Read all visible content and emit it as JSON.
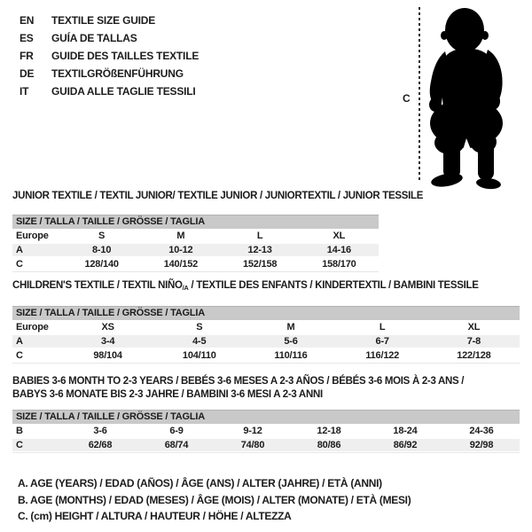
{
  "languages": [
    {
      "code": "EN",
      "title": "TEXTILE SIZE GUIDE"
    },
    {
      "code": "ES",
      "title": "GUÍA DE TALLAS"
    },
    {
      "code": "FR",
      "title": "GUIDE DES TAILLES TEXTILE"
    },
    {
      "code": "DE",
      "title": "TEXTILGRÖßENFÜHRUNG"
    },
    {
      "code": "IT",
      "title": "GUIDA ALLE TAGLIE TESSILI"
    }
  ],
  "figure": {
    "height_label": "C"
  },
  "sections": [
    {
      "title": "JUNIOR TEXTILE / TEXTIL JUNIOR/ TEXTILE JUNIOR / JUNIORTEXTIL / JUNIOR TESSILE",
      "table": {
        "size_header": "SIZE / TALLA / TAILLE / GRÖSSE / TAGLIA",
        "rows": [
          {
            "label": "Europe",
            "values": [
              "S",
              "M",
              "L",
              "XL"
            ]
          },
          {
            "label": "A",
            "values": [
              "8-10",
              "10-12",
              "12-13",
              "14-16"
            ]
          },
          {
            "label": "C",
            "values": [
              "128/140",
              "140/152",
              "152/158",
              "158/170"
            ]
          }
        ]
      }
    },
    {
      "title_pre": "CHILDREN'S TEXTILE / TEXTIL NIÑO",
      "title_sub": "/A",
      "title_post": " / TEXTILE DES ENFANTS / KINDERTEXTIL / BAMBINI TESSILE",
      "table": {
        "size_header": "SIZE / TALLA / TAILLE / GRÖSSE / TAGLIA",
        "rows": [
          {
            "label": "Europe",
            "values": [
              "XS",
              "S",
              "M",
              "L",
              "XL"
            ]
          },
          {
            "label": "A",
            "values": [
              "3-4",
              "4-5",
              "5-6",
              "6-7",
              "7-8"
            ]
          },
          {
            "label": "C",
            "values": [
              "98/104",
              "104/110",
              "110/116",
              "116/122",
              "122/128"
            ]
          }
        ]
      }
    },
    {
      "title_line1": "BABIES 3-6 MONTH TO 2-3 YEARS / BEBÉS 3-6 MESES A 2-3 AÑOS / BÉBÉS 3-6 MOIS À 2-3 ANS /",
      "title_line2": "BABYS 3-6 MONATE BIS 2-3 JAHRE / BAMBINI 3-6 MESI A 2-3 ANNI",
      "table": {
        "size_header": "SIZE / TALLA / TAILLE / GRÖSSE / TAGLIA",
        "rows": [
          {
            "label": "B",
            "values": [
              "3-6",
              "6-9",
              "9-12",
              "12-18",
              "18-24",
              "24-36"
            ]
          },
          {
            "label": "C",
            "values": [
              "62/68",
              "68/74",
              "74/80",
              "80/86",
              "86/92",
              "92/98"
            ]
          }
        ]
      }
    }
  ],
  "notes": [
    "A. AGE (YEARS) / EDAD (AÑOS) / ÂGE (ANS) / ALTER (JAHRE) / ETÀ (ANNI)",
    "B. AGE (MONTHS) / EDAD (MESES) / ÂGE (MOIS) / ALTER (MONATE) / ETÀ (MESI)",
    "C. (cm) HEIGHT / ALTURA / HAUTEUR / HÖHE / ALTEZZA"
  ],
  "colors": {
    "header_bar": "#c9c9c9",
    "row_alt": "#efefef",
    "text": "#1c1c1c",
    "silhouette": "#000000"
  }
}
